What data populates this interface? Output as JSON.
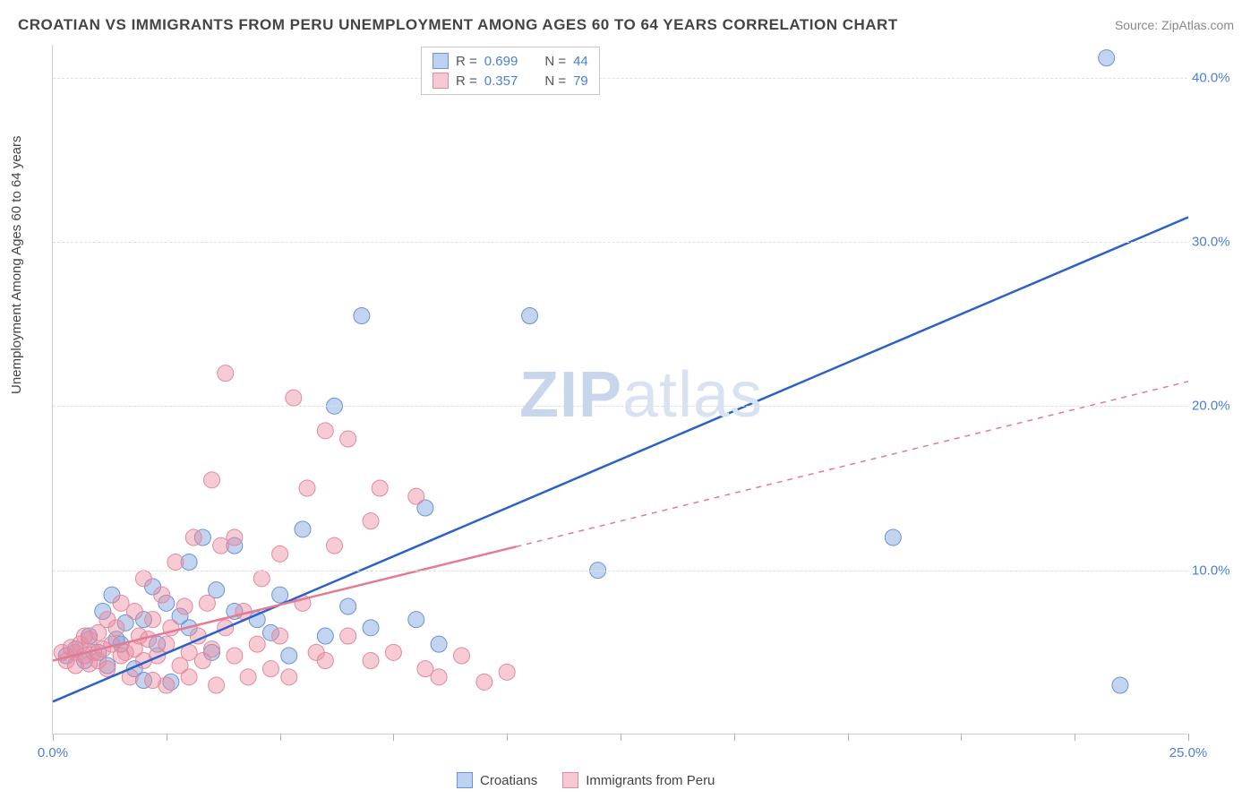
{
  "title": "CROATIAN VS IMMIGRANTS FROM PERU UNEMPLOYMENT AMONG AGES 60 TO 64 YEARS CORRELATION CHART",
  "source": "Source: ZipAtlas.com",
  "ylabel": "Unemployment Among Ages 60 to 64 years",
  "watermark_a": "ZIP",
  "watermark_b": "atlas",
  "chart": {
    "type": "scatter",
    "background_color": "#ffffff",
    "grid_color": "#e0e0e0",
    "axis_color": "#d0d0d0",
    "tick_label_color": "#4a7fd8",
    "xlim": [
      0,
      25
    ],
    "ylim": [
      0,
      42
    ],
    "xticks": [
      0,
      2.5,
      5,
      7.5,
      10,
      12.5,
      15,
      17.5,
      20,
      22.5,
      25
    ],
    "xtick_labels": {
      "0": "0.0%",
      "25": "25.0%"
    },
    "yticks": [
      10,
      20,
      30,
      40
    ],
    "ytick_labels": {
      "10": "10.0%",
      "20": "20.0%",
      "30": "30.0%",
      "40": "40.0%"
    },
    "label_fontsize": 15,
    "title_fontsize": 17,
    "series": [
      {
        "name": "Croatians",
        "color_fill": "rgba(120,160,220,0.45)",
        "color_stroke": "#6a94d4",
        "swatch_fill": "#bcd2f0",
        "swatch_border": "#6a94d4",
        "marker_radius": 9,
        "stats": {
          "R_label": "R =",
          "R": "0.699",
          "N_label": "N =",
          "N": "44"
        },
        "trend": {
          "x1": 0,
          "y1": 2.0,
          "x2": 25,
          "y2": 31.5,
          "solid_until_x": 25,
          "color": "#2c62c8",
          "width": 2.5
        },
        "points": [
          [
            0.3,
            4.8
          ],
          [
            0.5,
            5.2
          ],
          [
            0.7,
            4.5
          ],
          [
            0.8,
            6.0
          ],
          [
            1.0,
            5.0
          ],
          [
            1.1,
            7.5
          ],
          [
            1.2,
            4.2
          ],
          [
            1.3,
            8.5
          ],
          [
            1.5,
            5.5
          ],
          [
            1.6,
            6.8
          ],
          [
            1.8,
            4.0
          ],
          [
            2.0,
            7.0
          ],
          [
            2.0,
            3.3
          ],
          [
            2.2,
            9.0
          ],
          [
            2.3,
            5.5
          ],
          [
            2.5,
            8.0
          ],
          [
            2.6,
            3.2
          ],
          [
            2.8,
            7.2
          ],
          [
            3.0,
            6.5
          ],
          [
            3.0,
            10.5
          ],
          [
            3.3,
            12.0
          ],
          [
            3.5,
            5.0
          ],
          [
            3.6,
            8.8
          ],
          [
            4.0,
            7.5
          ],
          [
            4.0,
            11.5
          ],
          [
            4.5,
            7.0
          ],
          [
            4.8,
            6.2
          ],
          [
            5.0,
            8.5
          ],
          [
            5.2,
            4.8
          ],
          [
            5.5,
            12.5
          ],
          [
            6.0,
            6.0
          ],
          [
            6.2,
            20.0
          ],
          [
            6.5,
            7.8
          ],
          [
            6.8,
            25.5
          ],
          [
            7.0,
            6.5
          ],
          [
            8.0,
            7.0
          ],
          [
            8.2,
            13.8
          ],
          [
            8.5,
            5.5
          ],
          [
            10.5,
            25.5
          ],
          [
            12.0,
            10.0
          ],
          [
            18.5,
            12.0
          ],
          [
            23.2,
            41.2
          ],
          [
            23.5,
            3.0
          ],
          [
            1.4,
            5.8
          ]
        ]
      },
      {
        "name": "Immigrants from Peru",
        "color_fill": "rgba(235,140,160,0.45)",
        "color_stroke": "#e08aa0",
        "swatch_fill": "#f6c8d2",
        "swatch_border": "#e08aa0",
        "marker_radius": 9,
        "stats": {
          "R_label": "R =",
          "R": "0.357",
          "N_label": "N =",
          "N": "79"
        },
        "trend": {
          "x1": 0,
          "y1": 4.5,
          "x2": 25,
          "y2": 21.5,
          "solid_until_x": 10.2,
          "color": "#e57a92",
          "width": 2.5
        },
        "points": [
          [
            0.2,
            5.0
          ],
          [
            0.3,
            4.5
          ],
          [
            0.4,
            5.3
          ],
          [
            0.5,
            5.0
          ],
          [
            0.5,
            4.2
          ],
          [
            0.6,
            5.5
          ],
          [
            0.7,
            4.8
          ],
          [
            0.7,
            6.0
          ],
          [
            0.8,
            4.3
          ],
          [
            0.8,
            5.8
          ],
          [
            0.9,
            5.0
          ],
          [
            1.0,
            4.5
          ],
          [
            1.0,
            6.2
          ],
          [
            1.1,
            5.2
          ],
          [
            1.2,
            4.0
          ],
          [
            1.2,
            7.0
          ],
          [
            1.3,
            5.5
          ],
          [
            1.4,
            6.5
          ],
          [
            1.5,
            4.8
          ],
          [
            1.5,
            8.0
          ],
          [
            1.6,
            5.0
          ],
          [
            1.7,
            3.5
          ],
          [
            1.8,
            7.5
          ],
          [
            1.8,
            5.2
          ],
          [
            1.9,
            6.0
          ],
          [
            2.0,
            4.5
          ],
          [
            2.0,
            9.5
          ],
          [
            2.1,
            5.8
          ],
          [
            2.2,
            3.3
          ],
          [
            2.2,
            7.0
          ],
          [
            2.3,
            4.8
          ],
          [
            2.4,
            8.5
          ],
          [
            2.5,
            5.5
          ],
          [
            2.5,
            3.0
          ],
          [
            2.6,
            6.5
          ],
          [
            2.7,
            10.5
          ],
          [
            2.8,
            4.2
          ],
          [
            2.9,
            7.8
          ],
          [
            3.0,
            5.0
          ],
          [
            3.0,
            3.5
          ],
          [
            3.1,
            12.0
          ],
          [
            3.2,
            6.0
          ],
          [
            3.3,
            4.5
          ],
          [
            3.4,
            8.0
          ],
          [
            3.5,
            15.5
          ],
          [
            3.5,
            5.2
          ],
          [
            3.6,
            3.0
          ],
          [
            3.7,
            11.5
          ],
          [
            3.8,
            22.0
          ],
          [
            3.8,
            6.5
          ],
          [
            4.0,
            4.8
          ],
          [
            4.0,
            12.0
          ],
          [
            4.2,
            7.5
          ],
          [
            4.3,
            3.5
          ],
          [
            4.5,
            5.5
          ],
          [
            4.6,
            9.5
          ],
          [
            4.8,
            4.0
          ],
          [
            5.0,
            11.0
          ],
          [
            5.0,
            6.0
          ],
          [
            5.2,
            3.5
          ],
          [
            5.3,
            20.5
          ],
          [
            5.5,
            8.0
          ],
          [
            5.6,
            15.0
          ],
          [
            5.8,
            5.0
          ],
          [
            6.0,
            18.5
          ],
          [
            6.0,
            4.5
          ],
          [
            6.2,
            11.5
          ],
          [
            6.5,
            6.0
          ],
          [
            6.5,
            18.0
          ],
          [
            7.0,
            13.0
          ],
          [
            7.0,
            4.5
          ],
          [
            7.2,
            15.0
          ],
          [
            7.5,
            5.0
          ],
          [
            8.0,
            14.5
          ],
          [
            8.2,
            4.0
          ],
          [
            8.5,
            3.5
          ],
          [
            9.0,
            4.8
          ],
          [
            9.5,
            3.2
          ],
          [
            10.0,
            3.8
          ]
        ]
      }
    ],
    "legend_bottom": {
      "items": [
        {
          "label": "Croatians",
          "swatch_fill": "#bcd2f0",
          "swatch_border": "#6a94d4"
        },
        {
          "label": "Immigrants from Peru",
          "swatch_fill": "#f6c8d2",
          "swatch_border": "#e08aa0"
        }
      ]
    }
  }
}
